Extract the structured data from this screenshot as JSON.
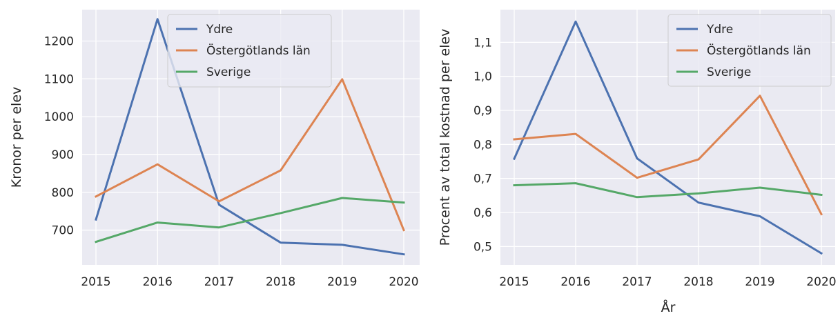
{
  "chart_data": [
    {
      "type": "line",
      "x": [
        2015,
        2016,
        2017,
        2018,
        2019,
        2020
      ],
      "x_tick_labels": [
        "2015",
        "2016",
        "2017",
        "2018",
        "2019",
        "2020"
      ],
      "y_tick_values": [
        700,
        800,
        900,
        1000,
        1100,
        1200
      ],
      "y_tick_labels": [
        "700",
        "800",
        "900",
        "1000",
        "1100",
        "1200"
      ],
      "xlabel": "",
      "ylabel": "Kronor per elev",
      "ylim": [
        608,
        1283
      ],
      "grid": true,
      "legend_position": "top-right",
      "series": [
        {
          "name": "Ydre",
          "color": "#4c72b0",
          "values": [
            728,
            1258,
            767,
            667,
            661,
            636
          ]
        },
        {
          "name": "Östergötlands län",
          "color": "#dd8452",
          "values": [
            789,
            874,
            776,
            858,
            1099,
            700
          ]
        },
        {
          "name": "Sverige",
          "color": "#55a868",
          "values": [
            669,
            720,
            707,
            745,
            785,
            773
          ]
        }
      ]
    },
    {
      "type": "line",
      "x": [
        2015,
        2016,
        2017,
        2018,
        2019,
        2020
      ],
      "x_tick_labels": [
        "2015",
        "2016",
        "2017",
        "2018",
        "2019",
        "2020"
      ],
      "y_tick_values": [
        0.5,
        0.6,
        0.7,
        0.8,
        0.9,
        1.0,
        1.1
      ],
      "y_tick_labels": [
        "0,5",
        "0,6",
        "0,7",
        "0,8",
        "0,9",
        "1,0",
        "1,1"
      ],
      "xlabel": "År",
      "ylabel": "Procent av total kostnad per elev",
      "ylim": [
        0.446,
        1.196
      ],
      "grid": true,
      "legend_position": "top-right",
      "series": [
        {
          "name": "Ydre",
          "color": "#4c72b0",
          "values": [
            0.758,
            1.161,
            0.759,
            0.629,
            0.589,
            0.48
          ]
        },
        {
          "name": "Östergötlands län",
          "color": "#dd8452",
          "values": [
            0.815,
            0.831,
            0.702,
            0.756,
            0.943,
            0.595
          ]
        },
        {
          "name": "Sverige",
          "color": "#55a868",
          "values": [
            0.68,
            0.686,
            0.645,
            0.656,
            0.673,
            0.652
          ]
        }
      ]
    }
  ]
}
